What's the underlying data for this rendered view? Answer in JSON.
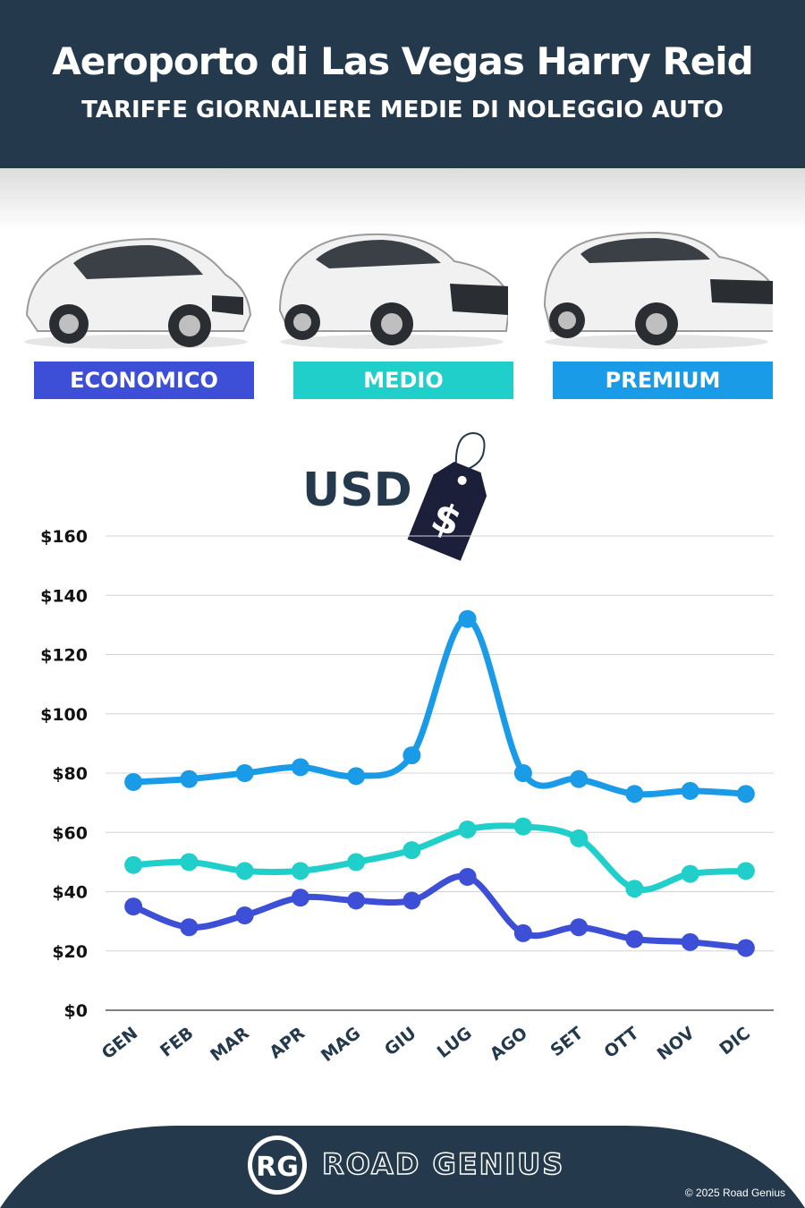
{
  "header": {
    "title": "Aeroporto di Las Vegas Harry Reid",
    "subtitle": "TARIFFE GIORNALIERE MEDIE DI NOLEGGIO AUTO",
    "background": "#243a4c"
  },
  "categories_legend": [
    {
      "label": "ECONOMICO",
      "color": "#3d4fd6"
    },
    {
      "label": "MEDIO",
      "color": "#20cfc9"
    },
    {
      "label": "PREMIUM",
      "color": "#1a9be8"
    }
  ],
  "currency_label": "USD",
  "price_tag_symbol": "$",
  "chart_data": {
    "type": "line",
    "categories": [
      "GEN",
      "FEB",
      "MAR",
      "APR",
      "MAG",
      "GIU",
      "LUG",
      "AGO",
      "SET",
      "OTT",
      "NOV",
      "DIC"
    ],
    "series": [
      {
        "name": "PREMIUM",
        "color": "#1a9be8",
        "values": [
          77,
          78,
          80,
          82,
          79,
          86,
          132,
          80,
          78,
          73,
          74,
          73
        ]
      },
      {
        "name": "MEDIO",
        "color": "#20cfc9",
        "values": [
          49,
          50,
          47,
          47,
          50,
          54,
          61,
          62,
          58,
          41,
          46,
          47
        ]
      },
      {
        "name": "ECONOMICO",
        "color": "#3d4fd6",
        "values": [
          35,
          28,
          32,
          38,
          37,
          37,
          45,
          26,
          28,
          24,
          23,
          21
        ]
      }
    ],
    "ylim": [
      0,
      160
    ],
    "yticks": [
      "$0",
      "$20",
      "$40",
      "$60",
      "$80",
      "$100",
      "$120",
      "$140",
      "$160"
    ],
    "grid": true
  },
  "footer": {
    "logo_text": "RG",
    "brand": "ROAD GENIUS",
    "copyright": "© 2025 Road Genius"
  }
}
